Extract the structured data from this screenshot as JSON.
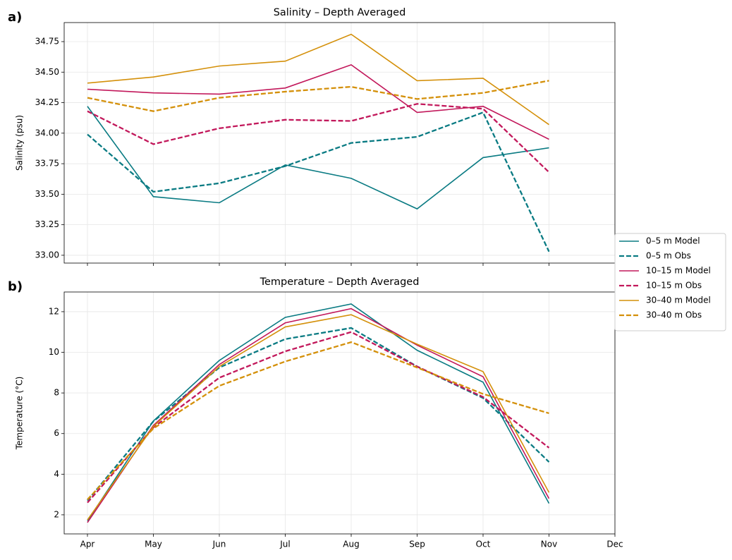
{
  "chart_data": [
    {
      "type": "line",
      "panel_label": "a)",
      "title": "Salinity – Depth Averaged",
      "ylabel": "Salinity (psu)",
      "ylim": [
        32.936,
        34.906
      ],
      "yticks": [
        {
          "value": 33.0,
          "label": "33.00"
        },
        {
          "value": 33.25,
          "label": "33.25"
        },
        {
          "value": 33.5,
          "label": "33.50"
        },
        {
          "value": 33.75,
          "label": "33.75"
        },
        {
          "value": 34.0,
          "label": "34.00"
        },
        {
          "value": 34.25,
          "label": "34.25"
        },
        {
          "value": 34.5,
          "label": "34.50"
        },
        {
          "value": 34.75,
          "label": "34.75"
        }
      ],
      "grid": true,
      "legend": "center right",
      "series": [
        {
          "name": "0–5 m Model",
          "color": "#0a7b83",
          "style": "solid",
          "values": [
            34.22,
            33.48,
            33.43,
            33.74,
            33.63,
            33.38,
            33.8,
            33.88,
            null
          ]
        },
        {
          "name": "0–5 m Obs",
          "color": "#0a7b83",
          "style": "dashed",
          "values": [
            33.99,
            33.52,
            33.59,
            33.73,
            33.92,
            33.97,
            34.17,
            33.03,
            null
          ]
        },
        {
          "name": "10–15 m Model",
          "color": "#c2185b",
          "style": "solid",
          "values": [
            34.36,
            34.33,
            34.32,
            34.37,
            34.56,
            34.17,
            34.22,
            33.95,
            null
          ]
        },
        {
          "name": "10–15 m Obs",
          "color": "#c2185b",
          "style": "dashed",
          "values": [
            34.18,
            33.91,
            34.04,
            34.11,
            34.1,
            34.24,
            34.2,
            33.68,
            null
          ]
        },
        {
          "name": "30–40 m Model",
          "color": "#d4900a",
          "style": "solid",
          "values": [
            34.41,
            34.46,
            34.55,
            34.59,
            34.81,
            34.43,
            34.45,
            34.07,
            null
          ]
        },
        {
          "name": "30–40 m Obs",
          "color": "#d4900a",
          "style": "dashed",
          "values": [
            34.29,
            34.18,
            34.29,
            34.34,
            34.38,
            34.28,
            34.33,
            34.43,
            null
          ]
        }
      ]
    },
    {
      "type": "line",
      "panel_label": "b)",
      "title": "Temperature – Depth Averaged",
      "ylabel": "Temperature (°C)",
      "categories": [
        "Apr",
        "May",
        "Jun",
        "Jul",
        "Aug",
        "Sep",
        "Oct",
        "Nov",
        "Dec"
      ],
      "ylim": [
        1.06,
        12.97
      ],
      "yticks": [
        2,
        4,
        6,
        8,
        10,
        12
      ],
      "grid": true,
      "series": [
        {
          "color": "#0a7b83",
          "style": "solid",
          "values": [
            1.7,
            6.62,
            9.6,
            11.72,
            12.38,
            10.1,
            8.53,
            2.56,
            null
          ]
        },
        {
          "color": "#0a7b83",
          "style": "dashed",
          "values": [
            2.7,
            6.6,
            9.25,
            10.65,
            11.2,
            9.3,
            7.75,
            4.6,
            null
          ]
        },
        {
          "color": "#c2185b",
          "style": "solid",
          "values": [
            1.62,
            6.4,
            9.4,
            11.45,
            12.15,
            10.35,
            8.8,
            2.8,
            null
          ]
        },
        {
          "color": "#c2185b",
          "style": "dashed",
          "values": [
            2.6,
            6.3,
            8.75,
            10.05,
            11.0,
            9.3,
            7.8,
            5.3,
            null
          ]
        },
        {
          "color": "#d4900a",
          "style": "solid",
          "values": [
            1.75,
            6.35,
            9.3,
            11.25,
            11.85,
            10.4,
            9.05,
            3.1,
            null
          ]
        },
        {
          "color": "#d4900a",
          "style": "dashed",
          "values": [
            2.75,
            6.25,
            8.35,
            9.55,
            10.5,
            9.25,
            7.95,
            7.0,
            null
          ]
        }
      ]
    }
  ]
}
